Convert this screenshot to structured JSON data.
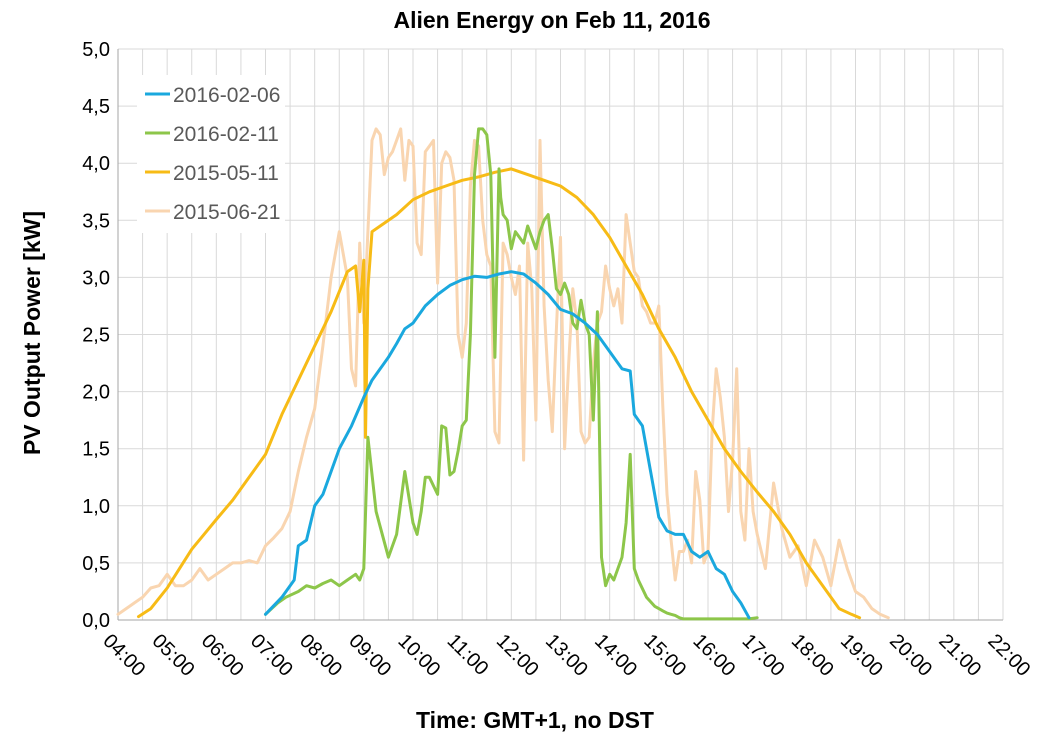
{
  "chart_data": {
    "type": "line",
    "title": "Alien Energy on Feb 11, 2016",
    "xlabel": "Time: GMT+1, no DST",
    "ylabel": "PV Output Power [kW]",
    "xlim": [
      4,
      22
    ],
    "ylim": [
      0,
      5
    ],
    "grid": true,
    "legend_position": "top-left",
    "x_ticks": [
      "04:00",
      "05:00",
      "06:00",
      "07:00",
      "08:00",
      "09:00",
      "10:00",
      "11:00",
      "12:00",
      "13:00",
      "14:00",
      "15:00",
      "16:00",
      "17:00",
      "18:00",
      "19:00",
      "20:00",
      "21:00",
      "22:00"
    ],
    "y_ticks": [
      "0,0",
      "0,5",
      "1,0",
      "1,5",
      "2,0",
      "2,5",
      "3,0",
      "3,5",
      "4,0",
      "4,5",
      "5,0"
    ],
    "series": [
      {
        "name": "2016-02-06",
        "color": "#1aa8de",
        "x": [
          "07:00",
          "07:20",
          "07:35",
          "07:40",
          "07:50",
          "08:00",
          "08:10",
          "08:20",
          "08:30",
          "08:45",
          "09:00",
          "09:10",
          "09:20",
          "09:30",
          "09:40",
          "09:50",
          "10:00",
          "10:15",
          "10:30",
          "10:45",
          "11:00",
          "11:15",
          "11:30",
          "11:45",
          "12:00",
          "12:15",
          "12:30",
          "12:45",
          "13:00",
          "13:15",
          "13:30",
          "13:45",
          "14:00",
          "14:15",
          "14:25",
          "14:30",
          "14:40",
          "14:50",
          "15:00",
          "15:10",
          "15:20",
          "15:30",
          "15:40",
          "15:50",
          "16:00",
          "16:10",
          "16:20",
          "16:30",
          "16:40",
          "16:50"
        ],
        "y": [
          0.05,
          0.2,
          0.35,
          0.65,
          0.7,
          1.0,
          1.1,
          1.3,
          1.5,
          1.7,
          1.95,
          2.1,
          2.2,
          2.3,
          2.42,
          2.55,
          2.6,
          2.75,
          2.85,
          2.93,
          2.98,
          3.01,
          3.0,
          3.03,
          3.05,
          3.03,
          2.95,
          2.85,
          2.72,
          2.68,
          2.6,
          2.5,
          2.35,
          2.2,
          2.18,
          1.8,
          1.7,
          1.3,
          0.9,
          0.78,
          0.75,
          0.75,
          0.6,
          0.55,
          0.6,
          0.45,
          0.4,
          0.25,
          0.15,
          0.02
        ]
      },
      {
        "name": "2016-02-11",
        "color": "#8dc64a",
        "x": [
          "07:00",
          "07:15",
          "07:25",
          "07:40",
          "07:50",
          "08:00",
          "08:10",
          "08:20",
          "08:30",
          "08:40",
          "08:50",
          "08:55",
          "09:00",
          "09:05",
          "09:15",
          "09:30",
          "09:40",
          "09:50",
          "10:00",
          "10:05",
          "10:10",
          "10:15",
          "10:20",
          "10:30",
          "10:35",
          "10:40",
          "10:45",
          "10:50",
          "10:55",
          "11:00",
          "11:05",
          "11:10",
          "11:15",
          "11:20",
          "11:25",
          "11:30",
          "11:35",
          "11:40",
          "11:45",
          "11:47",
          "11:50",
          "11:55",
          "12:00",
          "12:05",
          "12:10",
          "12:15",
          "12:20",
          "12:25",
          "12:30",
          "12:35",
          "12:40",
          "12:45",
          "12:50",
          "12:55",
          "13:00",
          "13:05",
          "13:10",
          "13:15",
          "13:20",
          "13:25",
          "13:30",
          "13:35",
          "13:40",
          "13:45",
          "13:50",
          "13:55",
          "14:00",
          "14:05",
          "14:10",
          "14:15",
          "14:20",
          "14:25",
          "14:30",
          "14:35",
          "14:45",
          "14:55",
          "15:00",
          "15:05",
          "15:10",
          "15:15",
          "15:20",
          "15:25",
          "15:30",
          "15:40",
          "15:50",
          "16:00",
          "16:10",
          "16:20",
          "16:30",
          "16:40",
          "16:50",
          "17:00"
        ],
        "y": [
          0.05,
          0.15,
          0.2,
          0.25,
          0.3,
          0.28,
          0.32,
          0.35,
          0.3,
          0.35,
          0.4,
          0.35,
          0.45,
          1.6,
          0.95,
          0.55,
          0.75,
          1.3,
          0.85,
          0.75,
          0.95,
          1.25,
          1.25,
          1.1,
          1.7,
          1.68,
          1.27,
          1.3,
          1.48,
          1.7,
          1.75,
          2.5,
          3.9,
          4.3,
          4.3,
          4.25,
          3.9,
          2.3,
          3.95,
          3.7,
          3.55,
          3.5,
          3.25,
          3.4,
          3.35,
          3.3,
          3.45,
          3.35,
          3.25,
          3.4,
          3.5,
          3.55,
          3.25,
          2.9,
          2.85,
          2.95,
          2.85,
          2.6,
          2.55,
          2.8,
          2.6,
          2.5,
          1.75,
          2.7,
          0.55,
          0.3,
          0.4,
          0.35,
          0.45,
          0.55,
          0.85,
          1.45,
          0.45,
          0.35,
          0.2,
          0.12,
          0.1,
          0.08,
          0.06,
          0.05,
          0.04,
          0.02,
          0.01,
          0.01,
          0.01,
          0.01,
          0.01,
          0.01,
          0.01,
          0.01,
          0.01,
          0.02
        ]
      },
      {
        "name": "2015-05-11",
        "color": "#f7bb16",
        "x": [
          "04:25",
          "04:40",
          "05:00",
          "05:15",
          "05:30",
          "05:45",
          "06:00",
          "06:20",
          "06:40",
          "07:00",
          "07:20",
          "07:40",
          "08:00",
          "08:20",
          "08:40",
          "08:50",
          "08:55",
          "09:00",
          "09:02",
          "09:05",
          "09:10",
          "09:20",
          "09:40",
          "10:00",
          "10:20",
          "10:40",
          "11:00",
          "11:20",
          "11:40",
          "12:00",
          "12:20",
          "12:40",
          "13:00",
          "13:20",
          "13:40",
          "14:00",
          "14:20",
          "14:40",
          "15:00",
          "15:20",
          "15:40",
          "16:00",
          "16:20",
          "16:40",
          "17:00",
          "17:20",
          "17:40",
          "18:00",
          "18:20",
          "18:40",
          "18:55",
          "19:05"
        ],
        "y": [
          0.03,
          0.1,
          0.28,
          0.45,
          0.62,
          0.75,
          0.88,
          1.05,
          1.25,
          1.45,
          1.8,
          2.1,
          2.4,
          2.7,
          3.05,
          3.1,
          2.7,
          3.15,
          1.6,
          2.9,
          3.4,
          3.45,
          3.55,
          3.68,
          3.75,
          3.8,
          3.85,
          3.88,
          3.92,
          3.95,
          3.9,
          3.85,
          3.8,
          3.7,
          3.55,
          3.35,
          3.1,
          2.85,
          2.55,
          2.3,
          2.0,
          1.75,
          1.5,
          1.3,
          1.12,
          0.95,
          0.75,
          0.5,
          0.3,
          0.1,
          0.05,
          0.02
        ]
      },
      {
        "name": "2015-06-21",
        "color": "#f9d5b0",
        "x": [
          "04:00",
          "04:10",
          "04:20",
          "04:30",
          "04:40",
          "04:50",
          "05:00",
          "05:10",
          "05:20",
          "05:30",
          "05:40",
          "05:50",
          "06:00",
          "06:10",
          "06:20",
          "06:30",
          "06:40",
          "06:50",
          "07:00",
          "07:10",
          "07:20",
          "07:30",
          "07:40",
          "07:50",
          "08:00",
          "08:10",
          "08:20",
          "08:30",
          "08:40",
          "08:45",
          "08:50",
          "08:55",
          "09:00",
          "09:05",
          "09:10",
          "09:15",
          "09:20",
          "09:25",
          "09:30",
          "09:35",
          "09:40",
          "09:45",
          "09:50",
          "09:55",
          "10:00",
          "10:05",
          "10:10",
          "10:15",
          "10:20",
          "10:25",
          "10:30",
          "10:35",
          "10:40",
          "10:45",
          "10:50",
          "10:55",
          "11:00",
          "11:05",
          "11:10",
          "11:15",
          "11:20",
          "11:25",
          "11:30",
          "11:35",
          "11:40",
          "11:45",
          "11:50",
          "11:55",
          "12:00",
          "12:05",
          "12:10",
          "12:15",
          "12:20",
          "12:25",
          "12:30",
          "12:35",
          "12:40",
          "12:45",
          "12:50",
          "12:55",
          "13:00",
          "13:05",
          "13:10",
          "13:15",
          "13:20",
          "13:25",
          "13:30",
          "13:35",
          "13:40",
          "13:45",
          "13:50",
          "13:55",
          "14:00",
          "14:05",
          "14:10",
          "14:15",
          "14:20",
          "14:25",
          "14:30",
          "14:35",
          "14:40",
          "14:45",
          "14:50",
          "14:55",
          "15:00",
          "15:05",
          "15:10",
          "15:15",
          "15:20",
          "15:25",
          "15:30",
          "15:35",
          "15:40",
          "15:45",
          "15:50",
          "15:55",
          "16:00",
          "16:05",
          "16:10",
          "16:15",
          "16:20",
          "16:25",
          "16:30",
          "16:35",
          "16:40",
          "16:45",
          "16:50",
          "16:55",
          "17:00",
          "17:10",
          "17:20",
          "17:30",
          "17:40",
          "17:50",
          "18:00",
          "18:10",
          "18:20",
          "18:30",
          "18:40",
          "18:50",
          "19:00",
          "19:10",
          "19:20",
          "19:30",
          "19:40"
        ],
        "y": [
          0.05,
          0.1,
          0.15,
          0.2,
          0.28,
          0.3,
          0.4,
          0.3,
          0.3,
          0.35,
          0.45,
          0.35,
          0.4,
          0.45,
          0.5,
          0.5,
          0.52,
          0.5,
          0.65,
          0.72,
          0.8,
          0.95,
          1.3,
          1.6,
          1.85,
          2.4,
          3.0,
          3.4,
          3.0,
          2.2,
          2.05,
          3.3,
          2.6,
          3.4,
          4.2,
          4.3,
          4.25,
          3.9,
          4.05,
          4.1,
          4.2,
          4.3,
          3.85,
          4.2,
          4.15,
          3.3,
          3.2,
          4.1,
          4.15,
          4.2,
          2.95,
          4.0,
          4.1,
          4.05,
          3.85,
          2.5,
          2.3,
          2.6,
          3.8,
          4.2,
          4.15,
          3.5,
          3.2,
          3.1,
          1.65,
          1.55,
          3.3,
          3.2,
          3.0,
          2.85,
          3.1,
          1.4,
          3.3,
          2.9,
          1.75,
          4.2,
          2.75,
          2.1,
          1.65,
          2.55,
          3.35,
          1.5,
          2.25,
          2.9,
          2.6,
          1.65,
          1.55,
          1.6,
          2.25,
          2.6,
          2.7,
          3.1,
          2.9,
          2.75,
          2.9,
          2.6,
          3.55,
          3.3,
          3.05,
          3.0,
          2.75,
          2.7,
          2.6,
          2.6,
          2.75,
          1.85,
          1.1,
          0.7,
          0.35,
          0.6,
          0.6,
          0.7,
          0.5,
          1.3,
          1.05,
          0.5,
          0.6,
          1.65,
          2.2,
          1.95,
          1.6,
          0.95,
          1.4,
          2.2,
          0.95,
          0.7,
          1.5,
          0.95,
          0.75,
          0.45,
          1.2,
          0.8,
          0.55,
          0.65,
          0.3,
          0.7,
          0.55,
          0.3,
          0.7,
          0.45,
          0.25,
          0.2,
          0.1,
          0.05,
          0.02
        ]
      }
    ]
  }
}
